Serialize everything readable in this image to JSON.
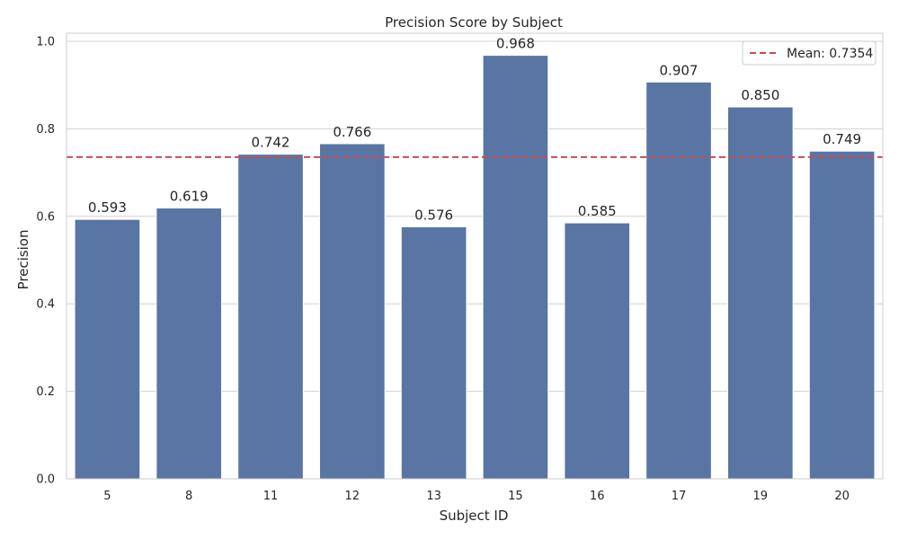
{
  "chart_data": {
    "type": "bar",
    "title": "Precision Score by Subject",
    "xlabel": "Subject ID",
    "ylabel": "Precision",
    "categories": [
      "5",
      "8",
      "11",
      "12",
      "13",
      "15",
      "16",
      "17",
      "19",
      "20"
    ],
    "values": [
      0.593,
      0.619,
      0.742,
      0.766,
      0.576,
      0.968,
      0.585,
      0.907,
      0.85,
      0.749
    ],
    "data_labels": [
      "0.593",
      "0.619",
      "0.742",
      "0.766",
      "0.576",
      "0.968",
      "0.585",
      "0.907",
      "0.850",
      "0.749"
    ],
    "ylim": [
      0,
      1.0
    ],
    "yticks": [
      0.0,
      0.2,
      0.4,
      0.6,
      0.8,
      1.0
    ],
    "ytick_labels": [
      "0.0",
      "0.2",
      "0.4",
      "0.6",
      "0.8",
      "1.0"
    ],
    "reference_line": {
      "value": 0.7354,
      "label": "Mean: 0.7354",
      "style": "dashed",
      "color": "#c44e52"
    },
    "bar_color": "#5875a4",
    "grid": "horizontal",
    "legend_position": "top-right"
  }
}
